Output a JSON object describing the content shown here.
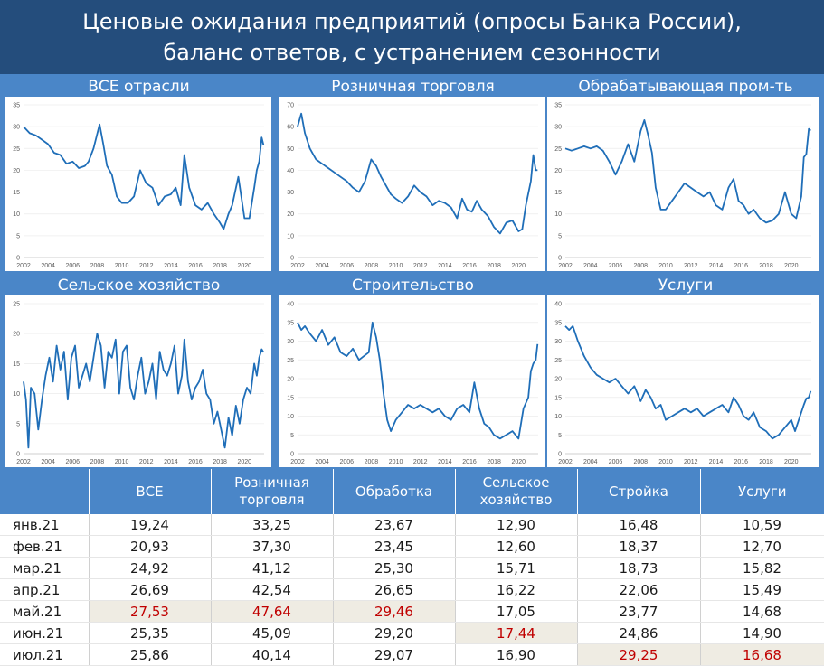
{
  "title": {
    "line1": "Ценовые ожидания предприятий (опросы Банка России),",
    "line2": "баланс ответов, с устранением сезонности"
  },
  "colors": {
    "header_bg": "#244d7c",
    "accent": "#4a86c8",
    "line": "#1f6eb8",
    "highlight_bg": "#efece3",
    "highlight_text": "#c00000"
  },
  "chart_data": [
    {
      "type": "line",
      "title": "ВСЕ отрасли",
      "ylim": [
        0,
        35
      ],
      "yticks": [
        0,
        5,
        10,
        15,
        20,
        25,
        30,
        35
      ],
      "xticks": [
        "2002",
        "2004",
        "2006",
        "2008",
        "2010",
        "2012",
        "2014",
        "2016",
        "2018",
        "2020"
      ],
      "xlim": [
        2002,
        2021.6
      ],
      "series": [
        {
          "x": [
            2002,
            2002.5,
            2003,
            2003.5,
            2004,
            2004.5,
            2005,
            2005.5,
            2006,
            2006.5,
            2007,
            2007.3,
            2007.7,
            2008.2,
            2008.5,
            2008.8,
            2009.2,
            2009.6,
            2010,
            2010.5,
            2011,
            2011.5,
            2012,
            2012.5,
            2013,
            2013.5,
            2014,
            2014.4,
            2014.8,
            2015.1,
            2015.5,
            2016,
            2016.5,
            2017,
            2017.5,
            2018,
            2018.3,
            2018.7,
            2019,
            2019.5,
            2020,
            2020.4,
            2020.8,
            2021,
            2021.2,
            2021.4,
            2021.55
          ],
          "y": [
            30,
            28.5,
            28,
            27,
            26,
            24,
            23.5,
            21.5,
            22,
            20.5,
            21,
            22,
            25,
            30.5,
            26,
            21,
            19,
            14,
            12.5,
            12.5,
            14,
            20,
            17,
            16,
            12,
            14,
            14.5,
            16,
            12,
            23.5,
            16,
            12,
            11,
            12.5,
            10,
            8,
            6.5,
            10,
            12,
            18.5,
            9,
            9,
            16,
            20,
            22,
            27.5,
            25.8
          ]
        }
      ]
    },
    {
      "type": "line",
      "title": "Розничная торговля",
      "ylim": [
        0,
        70
      ],
      "yticks": [
        0,
        10,
        20,
        30,
        40,
        50,
        60,
        70
      ],
      "xticks": [
        "2002",
        "2004",
        "2006",
        "2008",
        "2010",
        "2012",
        "2014",
        "2016",
        "2018",
        "2020"
      ],
      "xlim": [
        2002,
        2021.6
      ],
      "series": [
        {
          "x": [
            2002,
            2002.3,
            2002.6,
            2003,
            2003.5,
            2004,
            2004.5,
            2005,
            2005.5,
            2006,
            2006.5,
            2007,
            2007.5,
            2008,
            2008.4,
            2008.8,
            2009.2,
            2009.6,
            2010,
            2010.5,
            2011,
            2011.5,
            2012,
            2012.5,
            2013,
            2013.5,
            2014,
            2014.5,
            2015,
            2015.4,
            2015.8,
            2016.2,
            2016.6,
            2017,
            2017.5,
            2018,
            2018.5,
            2019,
            2019.5,
            2020,
            2020.3,
            2020.6,
            2021,
            2021.2,
            2021.4,
            2021.55
          ],
          "y": [
            60,
            66,
            57,
            50,
            45,
            43,
            41,
            39,
            37,
            35,
            32,
            30,
            35,
            45,
            42,
            37,
            33,
            29,
            27,
            25,
            28,
            33,
            30,
            28,
            24,
            26,
            25,
            23,
            18,
            27,
            22,
            21,
            26,
            22,
            19,
            14,
            11,
            16,
            17,
            12,
            13,
            24,
            35,
            47,
            40,
            40.1
          ]
        }
      ]
    },
    {
      "type": "line",
      "title": "Обрабатывающая пром-ть",
      "ylim": [
        0,
        35
      ],
      "yticks": [
        0,
        5,
        10,
        15,
        20,
        25,
        30,
        35
      ],
      "xticks": [
        "2002",
        "2004",
        "2006",
        "2008",
        "2010",
        "2012",
        "2014",
        "2016",
        "2018",
        "2020"
      ],
      "xlim": [
        2002,
        2021.6
      ],
      "series": [
        {
          "x": [
            2002,
            2002.5,
            2003,
            2003.5,
            2004,
            2004.5,
            2005,
            2005.5,
            2006,
            2006.5,
            2007,
            2007.5,
            2008,
            2008.3,
            2008.6,
            2008.9,
            2009.2,
            2009.6,
            2010,
            2010.5,
            2011,
            2011.5,
            2012,
            2012.5,
            2013,
            2013.5,
            2014,
            2014.5,
            2015,
            2015.4,
            2015.8,
            2016.2,
            2016.6,
            2017,
            2017.5,
            2018,
            2018.5,
            2019,
            2019.5,
            2020,
            2020.4,
            2020.8,
            2021,
            2021.2,
            2021.4,
            2021.55
          ],
          "y": [
            25,
            24.5,
            25,
            25.5,
            25,
            25.5,
            24.5,
            22,
            19,
            22,
            26,
            22,
            29,
            31.5,
            28,
            24,
            16,
            11,
            11,
            13,
            15,
            17,
            16,
            15,
            14,
            15,
            12,
            11,
            16,
            18,
            13,
            12,
            10,
            11,
            9,
            8,
            8.5,
            10,
            15,
            10,
            9,
            14,
            23,
            23.7,
            29.5,
            29.1
          ]
        }
      ]
    },
    {
      "type": "line",
      "title": "Сельское хозяйство",
      "ylim": [
        0,
        25
      ],
      "yticks": [
        0,
        5,
        10,
        15,
        20,
        25
      ],
      "xticks": [
        "2002",
        "2004",
        "2006",
        "2008",
        "2010",
        "2012",
        "2014",
        "2016",
        "2018",
        "2020"
      ],
      "xlim": [
        2002,
        2021.6
      ],
      "series": [
        {
          "x": [
            2002,
            2002.2,
            2002.4,
            2002.6,
            2002.9,
            2003.2,
            2003.5,
            2003.8,
            2004.1,
            2004.4,
            2004.7,
            2005,
            2005.3,
            2005.6,
            2005.9,
            2006.2,
            2006.5,
            2006.8,
            2007.1,
            2007.4,
            2007.7,
            2008,
            2008.3,
            2008.6,
            2008.9,
            2009.2,
            2009.5,
            2009.8,
            2010.1,
            2010.4,
            2010.7,
            2011,
            2011.3,
            2011.6,
            2011.9,
            2012.2,
            2012.5,
            2012.8,
            2013.1,
            2013.4,
            2013.7,
            2014,
            2014.3,
            2014.6,
            2014.9,
            2015.1,
            2015.4,
            2015.7,
            2016,
            2016.3,
            2016.6,
            2016.9,
            2017.2,
            2017.5,
            2017.8,
            2018.1,
            2018.4,
            2018.7,
            2019,
            2019.3,
            2019.6,
            2019.9,
            2020.2,
            2020.5,
            2020.8,
            2021,
            2021.2,
            2021.4,
            2021.55
          ],
          "y": [
            12,
            9,
            1,
            11,
            10,
            4,
            9,
            13,
            16,
            12,
            18,
            14,
            17,
            9,
            16,
            18,
            11,
            13,
            15,
            12,
            16,
            20,
            18,
            11,
            17,
            16,
            19,
            10,
            17,
            18,
            11,
            9,
            13,
            16,
            10,
            12,
            15,
            9,
            17,
            14,
            13,
            15,
            18,
            10,
            13,
            19,
            12,
            9,
            11,
            12,
            14,
            10,
            9,
            5,
            7,
            4,
            1,
            6,
            3,
            8,
            5,
            9,
            11,
            10,
            15,
            13,
            16,
            17.4,
            16.9
          ]
        }
      ]
    },
    {
      "type": "line",
      "title": "Строительство",
      "ylim": [
        0,
        40
      ],
      "yticks": [
        0,
        5,
        10,
        15,
        20,
        25,
        30,
        35,
        40
      ],
      "xticks": [
        "2002",
        "2004",
        "2006",
        "2008",
        "2010",
        "2012",
        "2014",
        "2016",
        "2018",
        "2020"
      ],
      "xlim": [
        2002,
        2021.6
      ],
      "series": [
        {
          "x": [
            2002,
            2002.3,
            2002.6,
            2003,
            2003.5,
            2004,
            2004.5,
            2005,
            2005.5,
            2006,
            2006.5,
            2007,
            2007.4,
            2007.8,
            2008.1,
            2008.4,
            2008.7,
            2009,
            2009.3,
            2009.6,
            2010,
            2010.5,
            2011,
            2011.5,
            2012,
            2012.5,
            2013,
            2013.5,
            2014,
            2014.5,
            2015,
            2015.5,
            2016,
            2016.4,
            2016.8,
            2017.2,
            2017.6,
            2018,
            2018.5,
            2019,
            2019.5,
            2020,
            2020.4,
            2020.8,
            2021,
            2021.2,
            2021.4,
            2021.55
          ],
          "y": [
            35,
            33,
            34,
            32,
            30,
            33,
            29,
            31,
            27,
            26,
            28,
            25,
            26,
            27,
            35,
            31,
            25,
            16,
            9,
            6,
            9,
            11,
            13,
            12,
            13,
            12,
            11,
            12,
            10,
            9,
            12,
            13,
            11,
            19,
            12,
            8,
            7,
            5,
            4,
            5,
            6,
            4,
            12,
            15,
            22,
            24,
            25,
            29.2
          ]
        }
      ]
    },
    {
      "type": "line",
      "title": "Услуги",
      "ylim": [
        0,
        40
      ],
      "yticks": [
        0,
        5,
        10,
        15,
        20,
        25,
        30,
        35,
        40
      ],
      "xticks": [
        "2002",
        "2004",
        "2006",
        "2008",
        "2010",
        "2012",
        "2014",
        "2016",
        "2018",
        "2020"
      ],
      "xlim": [
        2002,
        2021.6
      ],
      "series": [
        {
          "x": [
            2002,
            2002.3,
            2002.6,
            2003,
            2003.5,
            2004,
            2004.5,
            2005,
            2005.5,
            2006,
            2006.5,
            2007,
            2007.5,
            2008,
            2008.4,
            2008.8,
            2009.2,
            2009.6,
            2010,
            2010.5,
            2011,
            2011.5,
            2012,
            2012.5,
            2013,
            2013.5,
            2014,
            2014.5,
            2015,
            2015.4,
            2015.8,
            2016.2,
            2016.6,
            2017,
            2017.5,
            2018,
            2018.5,
            2019,
            2019.5,
            2020,
            2020.3,
            2020.7,
            2021,
            2021.2,
            2021.4,
            2021.55
          ],
          "y": [
            34,
            33,
            34,
            30,
            26,
            23,
            21,
            20,
            19,
            20,
            18,
            16,
            18,
            14,
            17,
            15,
            12,
            13,
            9,
            10,
            11,
            12,
            11,
            12,
            10,
            11,
            12,
            13,
            11,
            15,
            13,
            10,
            9,
            11,
            7,
            6,
            4,
            5,
            7,
            9,
            6,
            10,
            13,
            14.7,
            15,
            16.7
          ]
        }
      ]
    }
  ],
  "table": {
    "headers": [
      "",
      "ВСЕ",
      "Розничная торговля",
      "Обработка",
      "Сельское хозяйство",
      "Стройка",
      "Услуги"
    ],
    "rows": [
      {
        "label": "янв.21",
        "values": [
          "19,24",
          "33,25",
          "23,67",
          "12,90",
          "16,48",
          "10,59"
        ],
        "highlight": [
          false,
          false,
          false,
          false,
          false,
          false
        ]
      },
      {
        "label": "фев.21",
        "values": [
          "20,93",
          "37,30",
          "23,45",
          "12,60",
          "18,37",
          "12,70"
        ],
        "highlight": [
          false,
          false,
          false,
          false,
          false,
          false
        ]
      },
      {
        "label": "мар.21",
        "values": [
          "24,92",
          "41,12",
          "25,30",
          "15,71",
          "18,73",
          "15,82"
        ],
        "highlight": [
          false,
          false,
          false,
          false,
          false,
          false
        ]
      },
      {
        "label": "апр.21",
        "values": [
          "26,69",
          "42,54",
          "26,65",
          "16,22",
          "22,06",
          "15,49"
        ],
        "highlight": [
          false,
          false,
          false,
          false,
          false,
          false
        ]
      },
      {
        "label": "май.21",
        "values": [
          "27,53",
          "47,64",
          "29,46",
          "17,05",
          "23,77",
          "14,68"
        ],
        "highlight": [
          true,
          true,
          true,
          false,
          false,
          false
        ]
      },
      {
        "label": "июн.21",
        "values": [
          "25,35",
          "45,09",
          "29,20",
          "17,44",
          "24,86",
          "14,90"
        ],
        "highlight": [
          false,
          false,
          false,
          true,
          false,
          false
        ]
      },
      {
        "label": "июл.21",
        "values": [
          "25,86",
          "40,14",
          "29,07",
          "16,90",
          "29,25",
          "16,68"
        ],
        "highlight": [
          false,
          false,
          false,
          false,
          true,
          true
        ]
      }
    ]
  }
}
